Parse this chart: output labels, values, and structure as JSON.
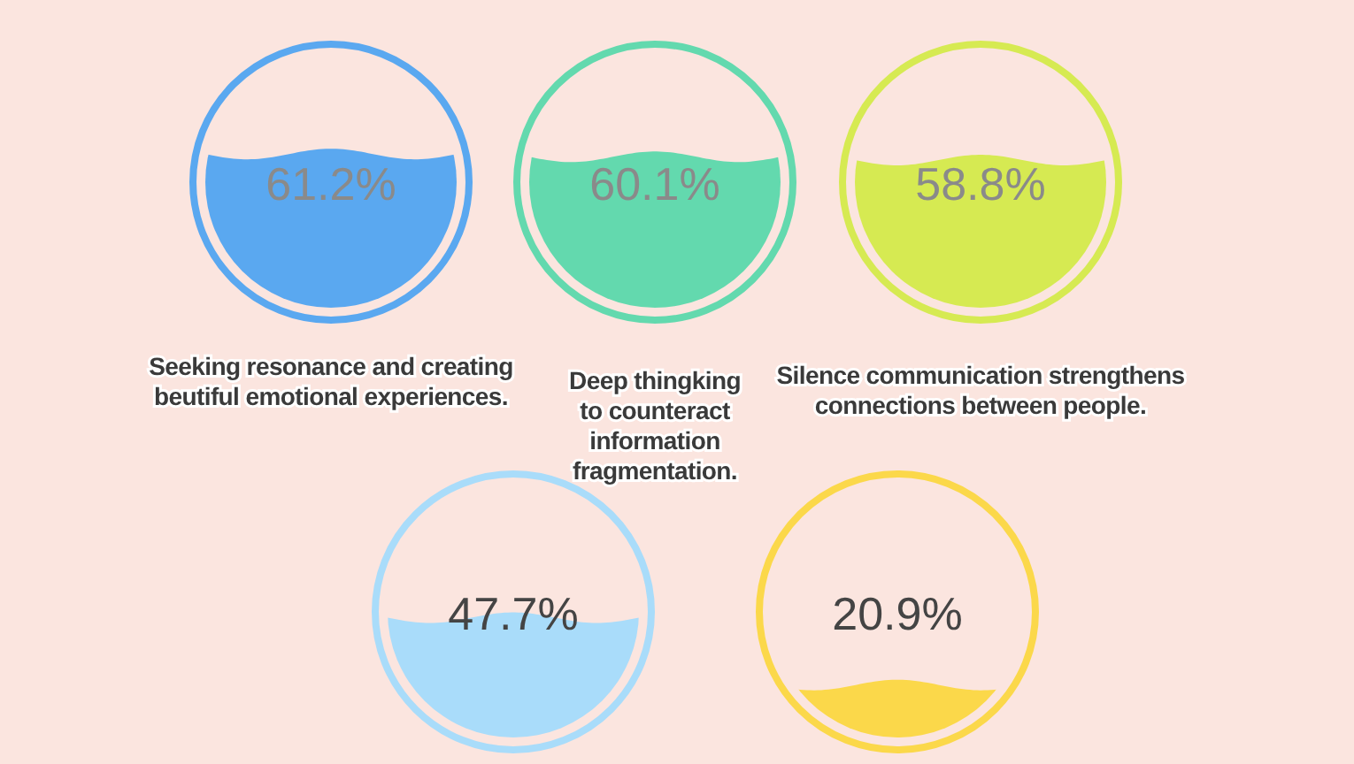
{
  "chart_data": {
    "type": "other",
    "categories": [
      "Seeking resonance and creating beutiful emotional experiences.",
      "Deep thingking to counteract information fragmentation.",
      "Silence communication strengthens connections between people.",
      null,
      null
    ],
    "values": [
      61.2,
      60.1,
      58.8,
      47.7,
      20.9
    ],
    "value_labels": [
      "61.2%",
      "60.1%",
      "58.8%",
      "47.7%",
      "20.9%"
    ],
    "colors": [
      "#5aa8f0",
      "#63d9ae",
      "#d6ea52",
      "#a9dcfa",
      "#fbd84a"
    ]
  }
}
